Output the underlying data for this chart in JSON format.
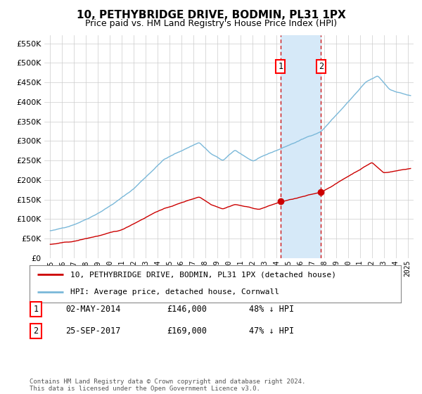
{
  "title": "10, PETHYBRIDGE DRIVE, BODMIN, PL31 1PX",
  "subtitle": "Price paid vs. HM Land Registry's House Price Index (HPI)",
  "legend_line1": "10, PETHYBRIDGE DRIVE, BODMIN, PL31 1PX (detached house)",
  "legend_line2": "HPI: Average price, detached house, Cornwall",
  "purchase1_date": "02-MAY-2014",
  "purchase1_price": "£146,000",
  "purchase1_note": "48% ↓ HPI",
  "purchase2_date": "25-SEP-2017",
  "purchase2_price": "£169,000",
  "purchase2_note": "47% ↓ HPI",
  "vline1_x": 2014.33,
  "vline2_x": 2017.73,
  "marker1_y": 146000,
  "marker2_y": 169000,
  "hpi_color": "#7ab8d9",
  "property_color": "#cc0000",
  "vline_color": "#cc0000",
  "shade_color": "#d6e9f8",
  "background_color": "#ffffff",
  "grid_color": "#cccccc",
  "ylim": [
    0,
    570000
  ],
  "xlim": [
    1994.5,
    2025.5
  ],
  "footer": "Contains HM Land Registry data © Crown copyright and database right 2024.\nThis data is licensed under the Open Government Licence v3.0."
}
